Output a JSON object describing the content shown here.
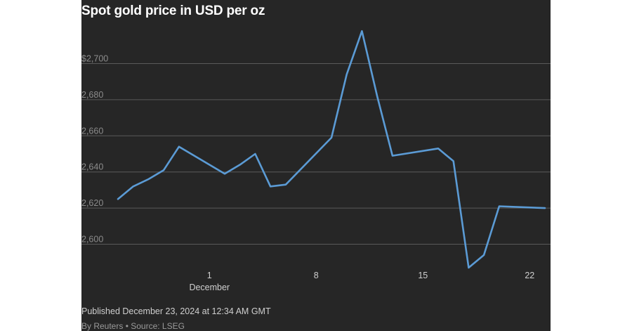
{
  "colors": {
    "background": "#262626",
    "line": "#5b9bd5",
    "grid": "#5a5a5a",
    "text": "#ffffff"
  },
  "footer": {
    "published": "Published December 23, 2024 at 12:34 AM GMT",
    "byline": "By Reuters • Source: LSEG"
  },
  "chart_data": {
    "type": "line",
    "title": "Spot gold price in USD per oz",
    "xlabel": "",
    "ylabel": "",
    "ylim": [
      2580,
      2720
    ],
    "y_ticks": [
      {
        "value": 2600,
        "label": "2,600"
      },
      {
        "value": 2620,
        "label": "2,620"
      },
      {
        "value": 2640,
        "label": "2,640"
      },
      {
        "value": 2660,
        "label": "2,660"
      },
      {
        "value": 2680,
        "label": "2,680"
      },
      {
        "value": 2700,
        "label": "$2,700"
      }
    ],
    "x_ticks": [
      {
        "date": "2024-12-01",
        "label": "1",
        "sublabel": "December"
      },
      {
        "date": "2024-12-08",
        "label": "8"
      },
      {
        "date": "2024-12-15",
        "label": "15"
      },
      {
        "date": "2024-12-22",
        "label": "22"
      }
    ],
    "xlim": [
      "2024-11-25",
      "2024-12-23"
    ],
    "grid": true,
    "series": [
      {
        "points": [
          {
            "x": "2024-11-25",
            "y": 2625
          },
          {
            "x": "2024-11-26",
            "y": 2632
          },
          {
            "x": "2024-11-27",
            "y": 2636
          },
          {
            "x": "2024-11-28",
            "y": 2641
          },
          {
            "x": "2024-11-29",
            "y": 2654
          },
          {
            "x": "2024-12-02",
            "y": 2639
          },
          {
            "x": "2024-12-03",
            "y": 2644
          },
          {
            "x": "2024-12-04",
            "y": 2650
          },
          {
            "x": "2024-12-05",
            "y": 2632
          },
          {
            "x": "2024-12-06",
            "y": 2633
          },
          {
            "x": "2024-12-09",
            "y": 2659
          },
          {
            "x": "2024-12-10",
            "y": 2694
          },
          {
            "x": "2024-12-11",
            "y": 2718
          },
          {
            "x": "2024-12-12",
            "y": 2682
          },
          {
            "x": "2024-12-13",
            "y": 2649
          },
          {
            "x": "2024-12-16",
            "y": 2653
          },
          {
            "x": "2024-12-17",
            "y": 2646
          },
          {
            "x": "2024-12-18",
            "y": 2587
          },
          {
            "x": "2024-12-19",
            "y": 2594
          },
          {
            "x": "2024-12-20",
            "y": 2621
          },
          {
            "x": "2024-12-23",
            "y": 2620
          }
        ]
      }
    ]
  }
}
